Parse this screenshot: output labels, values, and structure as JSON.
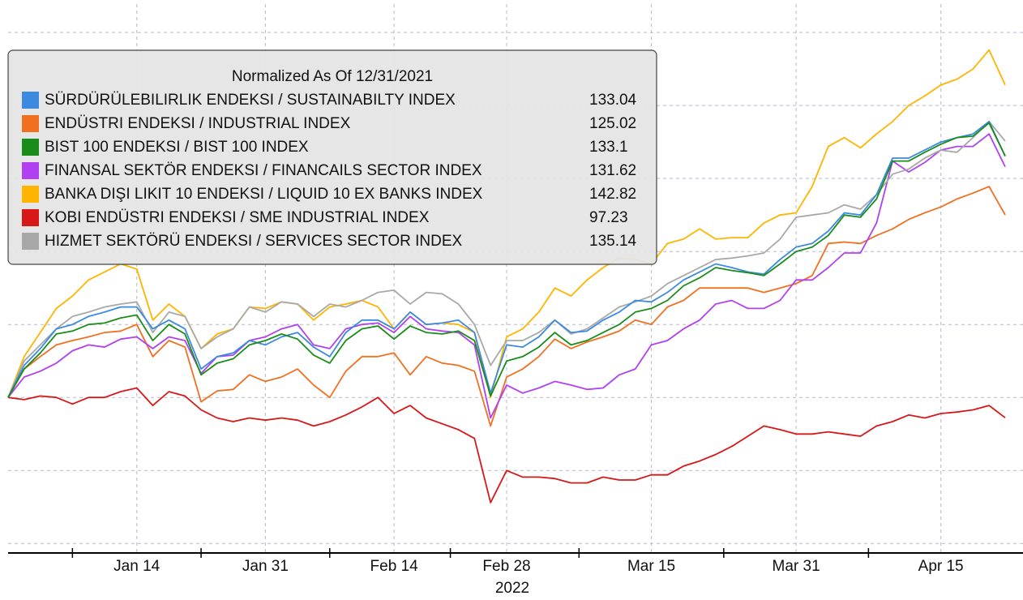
{
  "chart_data": {
    "type": "line",
    "legend_title": "Normalized As Of 12/31/2021",
    "xlabel": "2022",
    "categories": [
      null,
      null,
      null,
      null,
      null,
      null,
      null,
      null,
      "Jan 14",
      null,
      null,
      null,
      null,
      null,
      null,
      null,
      "Jan 31",
      null,
      null,
      null,
      null,
      null,
      null,
      null,
      "Feb 14",
      null,
      null,
      null,
      null,
      null,
      null,
      "Feb 28",
      null,
      null,
      null,
      null,
      null,
      null,
      null,
      null,
      "Mar 15",
      null,
      null,
      null,
      null,
      null,
      null,
      null,
      null,
      "Mar 31",
      null,
      null,
      null,
      null,
      null,
      null,
      null,
      null,
      "Apr 15",
      null,
      null,
      null,
      null
    ],
    "ylim": [
      78.7,
      153.9
    ],
    "yticks": [
      80,
      90,
      100,
      110,
      120,
      130,
      140,
      150
    ],
    "grid": true,
    "legend": "upper left",
    "series": [
      {
        "name": "SÜRDÜRÜLEBILIRLIK ENDEKSI / SUSTAINABILTY INDEX",
        "color": "#3c8ae0",
        "legend_value": 133.04,
        "values": [
          100.0,
          104.4,
          106.7,
          109.4,
          110.0,
          111.1,
          111.7,
          112.4,
          112.4,
          109.4,
          110.6,
          109.4,
          103.9,
          105.6,
          106.1,
          107.8,
          107.2,
          108.3,
          108.9,
          106.9,
          105.6,
          108.9,
          110.6,
          110.6,
          109.4,
          111.7,
          110.0,
          110.2,
          110.6,
          108.9,
          100.6,
          107.2,
          106.9,
          108.3,
          110.6,
          108.9,
          109.1,
          110.6,
          111.7,
          113.3,
          113.1,
          114.4,
          116.1,
          117.2,
          118.3,
          117.8,
          117.2,
          116.9,
          118.9,
          120.6,
          121.1,
          122.8,
          125.3,
          125.0,
          127.8,
          132.8,
          132.8,
          133.9,
          135.0,
          135.6,
          136.1,
          137.8,
          133.04
        ]
      },
      {
        "name": "ENDÜSTRI ENDEKSI / INDUSTRIAL INDEX",
        "color": "#f07020",
        "legend_value": 125.02,
        "values": [
          100.0,
          103.9,
          105.6,
          107.2,
          107.8,
          108.3,
          108.9,
          109.1,
          110.0,
          105.6,
          107.8,
          106.9,
          99.4,
          100.9,
          101.1,
          103.1,
          102.2,
          102.8,
          103.9,
          101.7,
          100.0,
          103.6,
          105.6,
          105.6,
          106.1,
          103.1,
          105.6,
          104.7,
          104.4,
          103.6,
          96.1,
          102.8,
          103.9,
          105.6,
          108.0,
          106.7,
          107.6,
          108.3,
          109.1,
          110.6,
          110.0,
          112.4,
          113.3,
          115.0,
          115.0,
          115.0,
          115.0,
          114.4,
          115.0,
          115.6,
          116.7,
          121.1,
          121.3,
          121.1,
          122.2,
          123.1,
          124.4,
          125.3,
          126.1,
          127.2,
          128.0,
          128.9,
          125.02
        ]
      },
      {
        "name": "BIST 100 ENDEKSI / BIST 100 INDEX",
        "color": "#1a8c1a",
        "legend_value": 133.1,
        "values": [
          100.0,
          103.9,
          106.1,
          108.7,
          109.1,
          110.0,
          110.2,
          110.9,
          111.3,
          107.8,
          110.0,
          108.7,
          103.1,
          104.7,
          105.3,
          107.2,
          107.8,
          108.7,
          108.0,
          105.8,
          104.7,
          107.8,
          109.4,
          109.8,
          108.0,
          109.8,
          108.9,
          108.7,
          109.1,
          107.8,
          100.2,
          105.0,
          105.6,
          106.9,
          108.9,
          107.2,
          107.8,
          108.9,
          110.0,
          111.7,
          112.2,
          113.3,
          115.3,
          116.4,
          117.8,
          117.4,
          117.1,
          116.7,
          118.3,
          120.0,
          120.6,
          122.2,
          125.0,
          124.7,
          127.2,
          132.4,
          132.4,
          133.6,
          134.7,
          135.6,
          135.8,
          137.6,
          133.1
        ]
      },
      {
        "name": "FINANSAL SEKTÖR ENDEKSI / FINANCAILS SECTOR INDEX",
        "color": "#b040f0",
        "legend_value": 131.62,
        "values": [
          100.0,
          102.8,
          103.6,
          104.7,
          106.4,
          107.2,
          106.9,
          108.0,
          108.3,
          106.7,
          108.3,
          107.8,
          103.3,
          105.6,
          105.8,
          107.8,
          108.3,
          109.4,
          110.0,
          107.2,
          106.7,
          109.4,
          110.0,
          110.2,
          108.9,
          111.1,
          109.4,
          109.1,
          108.9,
          107.2,
          97.2,
          101.7,
          100.6,
          101.3,
          102.2,
          101.7,
          101.1,
          101.3,
          103.1,
          103.9,
          107.2,
          107.8,
          109.4,
          110.6,
          112.8,
          113.3,
          112.2,
          112.2,
          113.3,
          116.1,
          116.1,
          117.8,
          119.8,
          119.8,
          123.9,
          132.4,
          130.9,
          132.2,
          133.9,
          134.4,
          134.4,
          136.1,
          131.62
        ]
      },
      {
        "name": "BANKA DIŞI LIKIT 10 ENDEKSI / LIQUID 10 EX BANKS INDEX",
        "color": "#ffb400",
        "legend_value": 142.82,
        "values": [
          100.0,
          105.6,
          108.9,
          112.2,
          113.9,
          116.1,
          117.2,
          118.3,
          117.6,
          110.6,
          112.8,
          111.1,
          106.7,
          108.7,
          109.4,
          112.4,
          112.2,
          113.1,
          112.8,
          110.6,
          112.4,
          112.8,
          113.3,
          112.4,
          109.4,
          111.7,
          110.0,
          110.2,
          110.0,
          108.9,
          100.0,
          108.3,
          109.4,
          111.7,
          115.0,
          113.9,
          116.1,
          117.8,
          119.1,
          118.9,
          118.3,
          121.1,
          121.7,
          123.1,
          121.7,
          121.9,
          121.9,
          123.9,
          125.0,
          125.3,
          128.9,
          134.4,
          135.6,
          134.2,
          136.1,
          137.8,
          140.0,
          141.3,
          142.8,
          143.6,
          145.0,
          147.6,
          142.82
        ]
      },
      {
        "name": "KOBI ENDÜSTRI ENDEKSI / SME INDUSTRIAL INDEX",
        "color": "#d81818",
        "legend_value": 97.23,
        "values": [
          100.0,
          99.7,
          100.2,
          100.0,
          99.1,
          100.0,
          100.0,
          100.8,
          101.3,
          98.9,
          100.8,
          100.2,
          98.3,
          97.2,
          96.7,
          97.2,
          96.9,
          97.2,
          96.9,
          96.1,
          96.7,
          97.6,
          98.7,
          100.0,
          97.8,
          98.9,
          97.2,
          96.4,
          95.6,
          94.4,
          85.6,
          90.0,
          89.1,
          89.1,
          88.9,
          88.3,
          88.3,
          89.1,
          88.7,
          88.7,
          89.4,
          89.4,
          90.6,
          91.3,
          92.2,
          93.3,
          94.7,
          96.1,
          95.6,
          95.0,
          95.0,
          95.3,
          95.0,
          94.7,
          96.1,
          96.7,
          97.6,
          97.2,
          97.8,
          98.0,
          98.3,
          98.9,
          97.23
        ]
      },
      {
        "name": "HIZMET SEKTÖRÜ ENDEKSI / SERVICES SECTOR INDEX",
        "color": "#a8a8a8",
        "legend_value": 135.14,
        "values": [
          100.0,
          105.0,
          107.2,
          109.4,
          111.1,
          111.7,
          112.4,
          112.8,
          113.1,
          108.9,
          111.7,
          111.1,
          106.7,
          108.3,
          109.4,
          112.4,
          111.7,
          113.1,
          112.8,
          111.1,
          112.8,
          112.4,
          113.3,
          114.4,
          114.7,
          112.8,
          114.4,
          114.2,
          112.8,
          110.0,
          104.4,
          107.8,
          107.8,
          108.9,
          110.6,
          108.7,
          109.4,
          110.9,
          112.4,
          113.1,
          113.9,
          115.6,
          116.7,
          117.8,
          118.9,
          119.1,
          119.4,
          119.8,
          121.7,
          124.7,
          125.0,
          125.3,
          126.4,
          125.8,
          127.8,
          130.6,
          131.3,
          132.8,
          133.9,
          133.6,
          135.6,
          137.8,
          135.14
        ]
      }
    ]
  }
}
